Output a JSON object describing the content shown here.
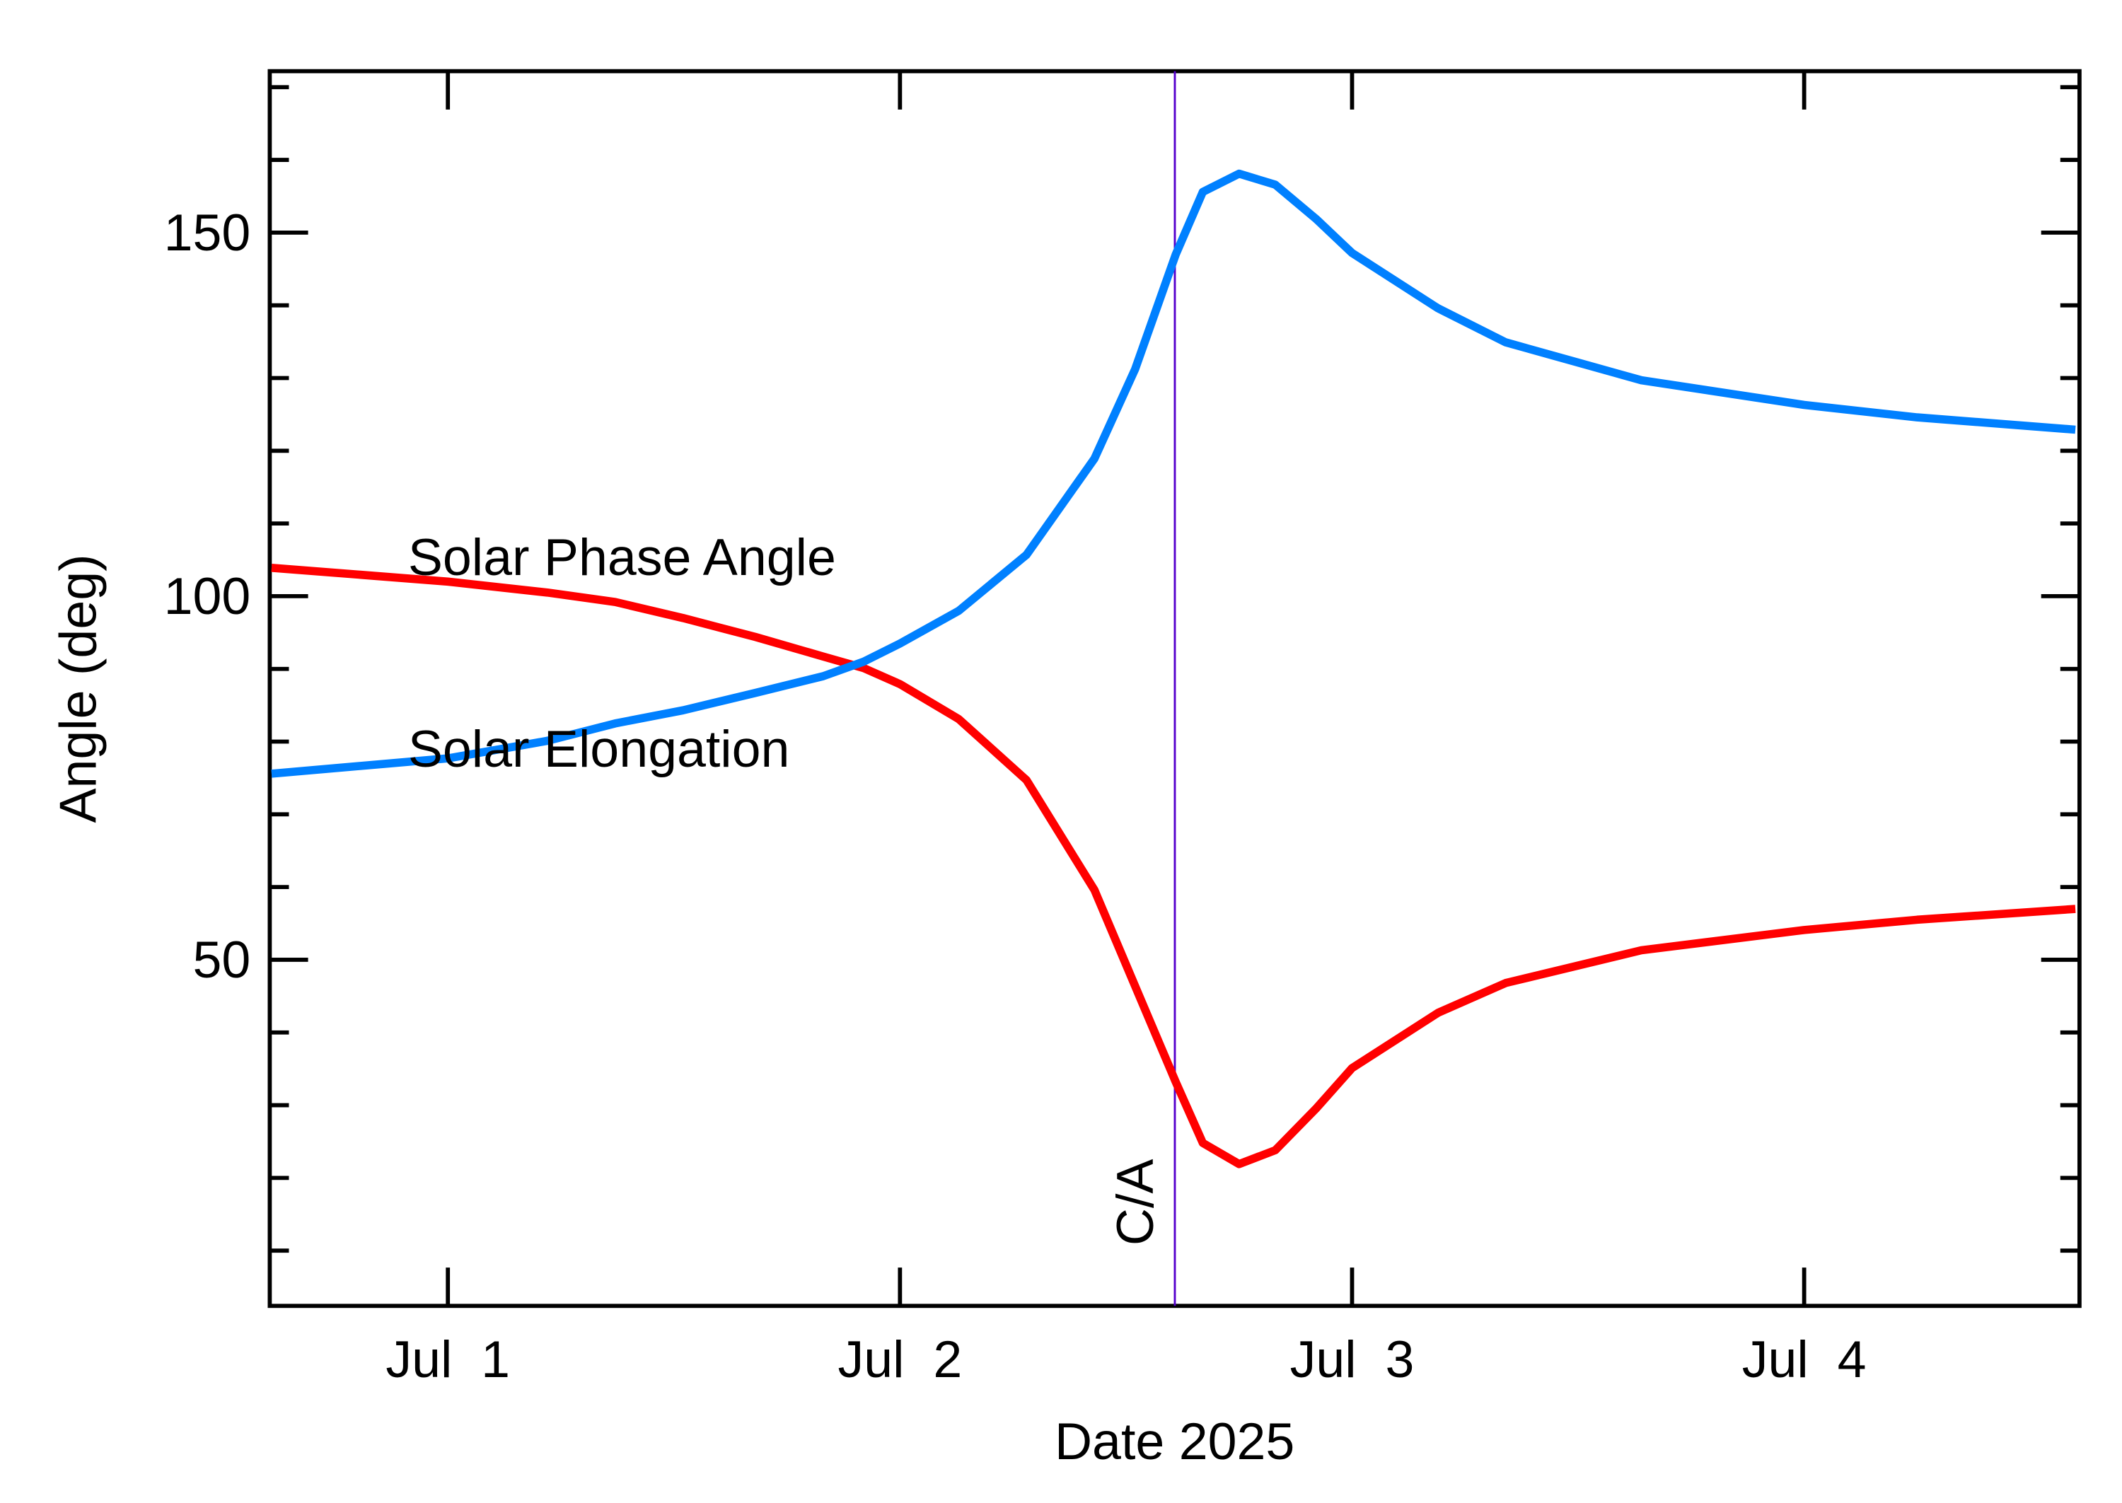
{
  "chart_data": {
    "type": "line",
    "x_label": "Date 2025",
    "y_label": "Angle (deg)",
    "x": [
      0.61,
      1,
      1.22,
      1.37,
      1.52,
      1.68,
      1.83,
      1.92,
      2,
      2.13,
      2.28,
      2.43,
      2.52,
      2.61,
      2.67,
      2.75,
      2.83,
      2.92,
      3,
      3.19,
      3.34,
      3.64,
      4,
      4.25,
      4.6
    ],
    "series": [
      {
        "name": "Solar Phase Angle",
        "color": "#ff0000",
        "values": [
          103.9,
          102,
          100.5,
          99.2,
          97,
          94.4,
          91.7,
          90.1,
          87.9,
          83.1,
          74.7,
          59.6,
          46.4,
          33.2,
          24.8,
          21.9,
          23.8,
          29.5,
          35.1,
          42.7,
          46.8,
          51.3,
          54.1,
          55.5,
          57
        ]
      },
      {
        "name": "Solar Elongation",
        "color": "#0080ff",
        "values": [
          75.6,
          77.7,
          80.1,
          82.5,
          84.3,
          86.7,
          89,
          91,
          93.5,
          98,
          105.7,
          118.9,
          131.2,
          147,
          155.6,
          158.1,
          156.6,
          151.9,
          147.2,
          139.6,
          134.9,
          129.7,
          126.3,
          124.6,
          122.9
        ]
      }
    ],
    "closest_approach": {
      "x": 2.608,
      "label": "C/A",
      "color": "#5500cc"
    },
    "xlim": [
      0.606,
      4.609
    ],
    "xticks": [
      {
        "value": 1,
        "label": "Jul  1"
      },
      {
        "value": 2,
        "label": "Jul  2"
      },
      {
        "value": 3,
        "label": "Jul  3"
      },
      {
        "value": 4,
        "label": "Jul  4"
      }
    ],
    "ylim": [
      2.4,
      172.2
    ],
    "yticks": [
      50,
      100,
      150
    ],
    "yminorticks": [
      10,
      20,
      30,
      40,
      60,
      70,
      80,
      90,
      110,
      120,
      130,
      140,
      160,
      170
    ]
  }
}
